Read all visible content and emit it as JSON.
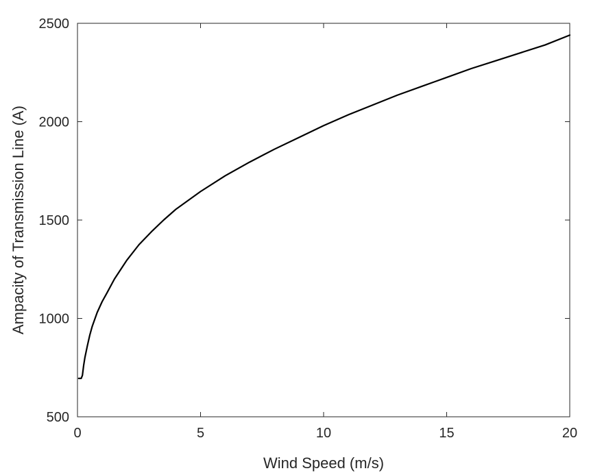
{
  "chart_data": {
    "type": "line",
    "title": "",
    "xlabel": "Wind Speed (m/s)",
    "ylabel": "Ampacity of Transmission Line (A)",
    "xlim": [
      0,
      20
    ],
    "ylim": [
      500,
      2500
    ],
    "xticks": [
      0,
      5,
      10,
      15,
      20
    ],
    "yticks": [
      500,
      1000,
      1500,
      2000,
      2500
    ],
    "xtick_labels": [
      "0",
      "5",
      "10",
      "15",
      "20"
    ],
    "ytick_labels": [
      "500",
      "1000",
      "1500",
      "2000",
      "2500"
    ],
    "grid": false,
    "box": true,
    "series": [
      {
        "color": "#000000",
        "x": [
          0.05,
          0.1,
          0.15,
          0.2,
          0.25,
          0.3,
          0.4,
          0.5,
          0.6,
          0.8,
          1.0,
          1.2,
          1.5,
          2.0,
          2.5,
          3.0,
          3.5,
          4.0,
          5.0,
          6.0,
          7.0,
          8.0,
          9.0,
          10.0,
          11.0,
          12.0,
          13.0,
          14.0,
          15.0,
          16.0,
          17.0,
          18.0,
          19.0,
          20.0
        ],
        "y": [
          695,
          695,
          695,
          710,
          760,
          800,
          860,
          915,
          960,
          1030,
          1085,
          1130,
          1200,
          1295,
          1375,
          1440,
          1500,
          1555,
          1645,
          1725,
          1795,
          1860,
          1920,
          1980,
          2035,
          2085,
          2135,
          2180,
          2225,
          2270,
          2310,
          2350,
          2390,
          2440
        ]
      }
    ]
  }
}
